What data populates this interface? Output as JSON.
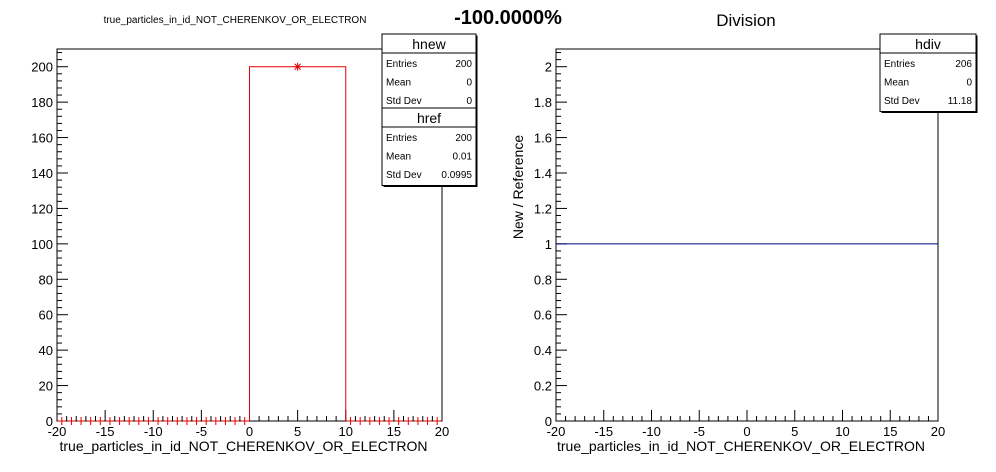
{
  "header": {
    "center_title": "-100.0000%"
  },
  "chart_data": [
    {
      "type": "bar",
      "title": "true_particles_in_id_NOT_CHERENKOV_OR_ELECTRON",
      "xlabel": "true_particles_in_id_NOT_CHERENKOV_OR_ELECTRON",
      "ylabel": "",
      "xlim": [
        -20,
        20
      ],
      "ylim": [
        0,
        210
      ],
      "x_ticks": [
        -20,
        -15,
        -10,
        -5,
        0,
        5,
        10,
        15,
        20
      ],
      "y_ticks": [
        0,
        20,
        40,
        60,
        80,
        100,
        120,
        140,
        160,
        180,
        200
      ],
      "series": [
        {
          "name": "hnew",
          "style": "histogram-outline",
          "color": "#e00000",
          "bins": [
            {
              "x0": 0,
              "x1": 10,
              "value": 200
            }
          ]
        },
        {
          "name": "href",
          "style": "markers",
          "color": "#e00000",
          "points": [
            {
              "x": -19.5,
              "y": 0
            },
            {
              "x": -18.5,
              "y": 0
            },
            {
              "x": -17.5,
              "y": 0
            },
            {
              "x": -16.5,
              "y": 0
            },
            {
              "x": -15.5,
              "y": 0
            },
            {
              "x": -14.5,
              "y": 0
            },
            {
              "x": -13.5,
              "y": 0
            },
            {
              "x": -12.5,
              "y": 0
            },
            {
              "x": -11.5,
              "y": 0
            },
            {
              "x": -10.5,
              "y": 0
            },
            {
              "x": -9.5,
              "y": 0
            },
            {
              "x": -8.5,
              "y": 0
            },
            {
              "x": -7.5,
              "y": 0
            },
            {
              "x": -6.5,
              "y": 0
            },
            {
              "x": -5.5,
              "y": 0
            },
            {
              "x": -4.5,
              "y": 0
            },
            {
              "x": -3.5,
              "y": 0
            },
            {
              "x": -2.5,
              "y": 0
            },
            {
              "x": -1.5,
              "y": 0
            },
            {
              "x": -0.5,
              "y": 0
            },
            {
              "x": 5,
              "y": 200
            },
            {
              "x": 10.5,
              "y": 0
            },
            {
              "x": 11.5,
              "y": 0
            },
            {
              "x": 12.5,
              "y": 0
            },
            {
              "x": 13.5,
              "y": 0
            },
            {
              "x": 14.5,
              "y": 0
            },
            {
              "x": 15.5,
              "y": 0
            },
            {
              "x": 16.5,
              "y": 0
            },
            {
              "x": 17.5,
              "y": 0
            },
            {
              "x": 18.5,
              "y": 0
            },
            {
              "x": 19.5,
              "y": 0
            }
          ]
        }
      ],
      "stats": [
        {
          "name": "hnew",
          "rows": [
            [
              "Entries",
              "200"
            ],
            [
              "Mean",
              "0"
            ],
            [
              "Std Dev",
              "0"
            ]
          ]
        },
        {
          "name": "href",
          "rows": [
            [
              "Entries",
              "200"
            ],
            [
              "Mean",
              "0.01"
            ],
            [
              "Std Dev",
              "0.0995"
            ]
          ]
        }
      ]
    },
    {
      "type": "line",
      "title": "Division",
      "xlabel": "true_particles_in_id_NOT_CHERENKOV_OR_ELECTRON",
      "ylabel": "New / Reference",
      "xlim": [
        -20,
        20
      ],
      "ylim": [
        0,
        2.1
      ],
      "x_ticks": [
        -20,
        -15,
        -10,
        -5,
        0,
        5,
        10,
        15,
        20
      ],
      "y_ticks": [
        "0",
        "0.2",
        "0.4",
        "0.6",
        "0.8",
        "1",
        "1.2",
        "1.4",
        "1.6",
        "1.8",
        "2"
      ],
      "series": [
        {
          "name": "hdiv",
          "color": "#000080",
          "x": [
            -20,
            20
          ],
          "y": [
            1,
            1
          ]
        }
      ],
      "stats": [
        {
          "name": "hdiv",
          "rows": [
            [
              "Entries",
              "206"
            ],
            [
              "Mean",
              "0"
            ],
            [
              "Std Dev",
              "11.18"
            ]
          ]
        }
      ]
    }
  ]
}
